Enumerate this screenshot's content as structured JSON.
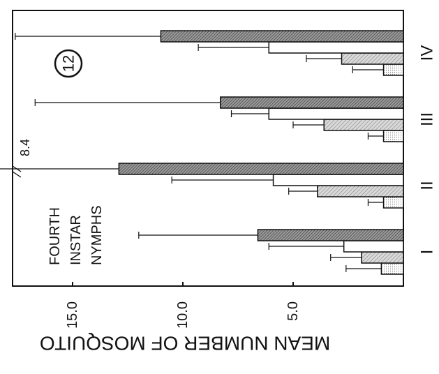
{
  "chart_data": {
    "type": "bar",
    "figure_number": "12",
    "annotation_lines": [
      "FOURTH",
      "INSTAR",
      "NYMPHS"
    ],
    "ylabel": "MEAN NUMBER OF MOSQUITO",
    "categories": [
      "I",
      "II",
      "III",
      "IV"
    ],
    "ylim": [
      0,
      18
    ],
    "y_ticks": [
      {
        "value": 5,
        "label": "5.0"
      },
      {
        "value": 10,
        "label": "10.0"
      },
      {
        "value": 15,
        "label": "15.0"
      }
    ],
    "grid": false,
    "orientation": "rotated",
    "series": [
      {
        "values": [
          1.0,
          0.9,
          0.9,
          0.9
        ],
        "errors": [
          1.6,
          0.7,
          0.7,
          1.4
        ],
        "fill": "dotted"
      },
      {
        "values": [
          1.9,
          3.9,
          3.6,
          2.8
        ],
        "errors": [
          1.4,
          1.3,
          1.4,
          1.6
        ],
        "fill": "hatched-light"
      },
      {
        "values": [
          2.7,
          5.9,
          6.1,
          6.1
        ],
        "errors": [
          3.4,
          4.6,
          1.7,
          3.2
        ],
        "fill": "white"
      },
      {
        "values": [
          6.6,
          12.9,
          8.3,
          11.0
        ],
        "errors": [
          5.4,
          8.4,
          8.4,
          6.6
        ],
        "fill": "hatched-dark"
      }
    ],
    "broken_error_label": "8.4"
  },
  "colors": {
    "ink": "#111111",
    "light": "#c8c8c8",
    "dark": "#8a8a8a"
  }
}
